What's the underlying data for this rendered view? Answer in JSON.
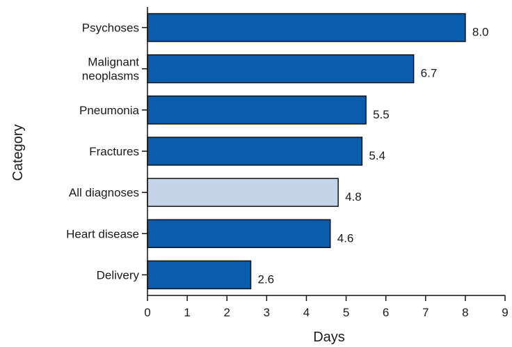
{
  "chart_data": {
    "type": "bar",
    "orientation": "horizontal",
    "title": "",
    "xlabel": "Days",
    "ylabel": "Category",
    "categories": [
      [
        "Psychoses"
      ],
      [
        "Malignant",
        "neoplasms"
      ],
      [
        "Pneumonia"
      ],
      [
        "Fractures"
      ],
      [
        "All diagnoses"
      ],
      [
        "Heart disease"
      ],
      [
        "Delivery"
      ]
    ],
    "values": [
      8.0,
      6.7,
      5.5,
      5.4,
      4.8,
      4.6,
      2.6
    ],
    "value_labels": [
      "8.0",
      "6.7",
      "5.5",
      "5.4",
      "4.8",
      "4.6",
      "2.6"
    ],
    "xlim": [
      0,
      9
    ],
    "xticks": [
      "0",
      "1",
      "2",
      "3",
      "4",
      "5",
      "6",
      "7",
      "8",
      "9"
    ],
    "grid": false,
    "colors": {
      "default_bar": "#0A5CAD",
      "highlight_bar": "#C5D3E8",
      "highlight_category": "All diagnoses",
      "bar_stroke": "#111111",
      "axis": "#111111"
    }
  }
}
